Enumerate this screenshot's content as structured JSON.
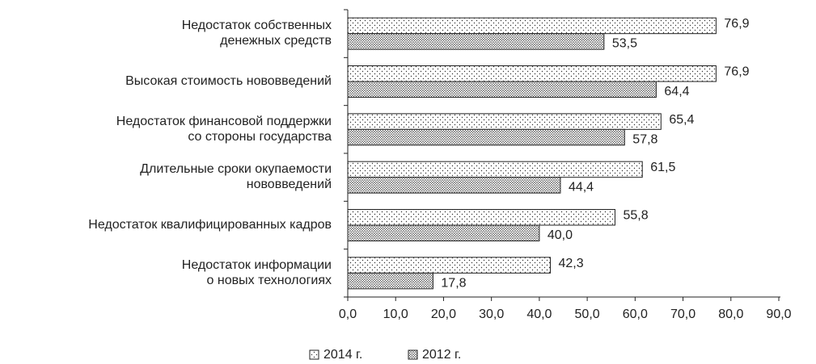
{
  "chart_data": {
    "type": "hbar",
    "categories": [
      "Недостаток собственных\nденежных средств",
      "Высокая стоимость нововведений",
      "Недостаток финансовой поддержки\nсо стороны государства",
      "Длительные сроки окупаемости\nнововведений",
      "Недостаток квалифицированных кадров",
      "Недостаток информации\nо новых технологиях"
    ],
    "series": [
      {
        "name": "2014 г.",
        "color": "sparse-dots",
        "values": [
          76.9,
          76.9,
          65.4,
          61.5,
          55.8,
          42.3
        ],
        "value_labels": [
          "76,9",
          "76,9",
          "65,4",
          "61,5",
          "55,8",
          "42,3"
        ]
      },
      {
        "name": "2012 г.",
        "color": "dense-dots",
        "values": [
          53.5,
          64.4,
          57.8,
          44.4,
          40.0,
          17.8
        ],
        "value_labels": [
          "53,5",
          "64,4",
          "57,8",
          "44,4",
          "40,0",
          "17,8"
        ]
      }
    ],
    "xlim": [
      0,
      90
    ],
    "xticks": [
      {
        "value": 0,
        "label": "0,0"
      },
      {
        "value": 10,
        "label": "10,0"
      },
      {
        "value": 20,
        "label": "20,0"
      },
      {
        "value": 30,
        "label": "30,0"
      },
      {
        "value": 40,
        "label": "40,0"
      },
      {
        "value": 50,
        "label": "50,0"
      },
      {
        "value": 60,
        "label": "60,0"
      },
      {
        "value": 70,
        "label": "70,0"
      },
      {
        "value": 80,
        "label": "80,0"
      },
      {
        "value": 90,
        "label": "90,0"
      }
    ],
    "legend": "bottom"
  }
}
